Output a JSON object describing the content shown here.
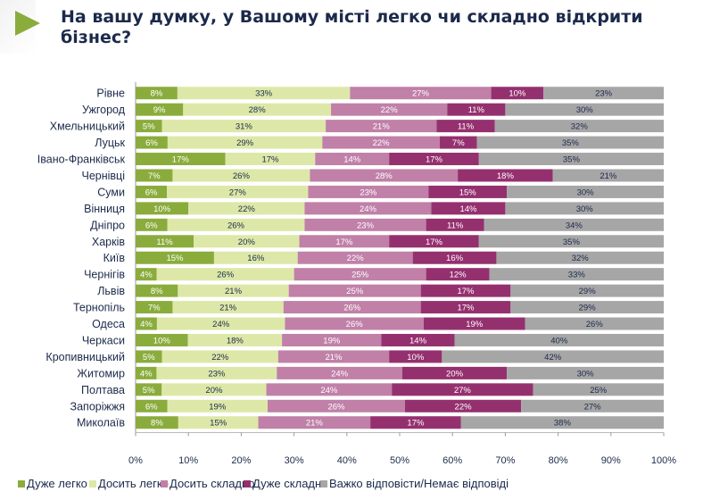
{
  "title": "На вашу думку, у Вашому місті легко чи складно відкрити бізнес?",
  "colors": [
    "#8aac3c",
    "#dde8a8",
    "#c080a8",
    "#95306f",
    "#a6a6a6"
  ],
  "chart_data": {
    "type": "bar",
    "orientation": "horizontal",
    "stacked": "percent",
    "title": "На вашу думку, у Вашому місті легко чи складно відкрити бізнес?",
    "xlim": [
      0,
      100
    ],
    "x_ticks": [
      "0%",
      "10%",
      "20%",
      "30%",
      "40%",
      "50%",
      "60%",
      "70%",
      "80%",
      "90%",
      "100%"
    ],
    "legend_position": "bottom",
    "categories": [
      "Рівне",
      "Ужгород",
      "Хмельницький",
      "Луцьк",
      "Івано-Франківськ",
      "Чернівці",
      "Суми",
      "Вінниця",
      "Дніпро",
      "Харків",
      "Київ",
      "Чернігів",
      "Львів",
      "Тернопіль",
      "Одеса",
      "Черкаси",
      "Кропивницький",
      "Житомир",
      "Полтава",
      "Запоріжжя",
      "Миколаїв"
    ],
    "series": [
      {
        "name": "Дуже легко",
        "values": [
          8,
          9,
          5,
          6,
          17,
          7,
          6,
          10,
          6,
          11,
          15,
          4,
          8,
          7,
          4,
          10,
          5,
          4,
          5,
          6,
          8
        ]
      },
      {
        "name": "Досить легко",
        "values": [
          33,
          28,
          31,
          29,
          17,
          26,
          27,
          22,
          26,
          20,
          16,
          26,
          21,
          21,
          24,
          18,
          22,
          23,
          20,
          19,
          15
        ]
      },
      {
        "name": "Досить складно",
        "values": [
          27,
          22,
          21,
          22,
          14,
          28,
          23,
          24,
          23,
          17,
          22,
          25,
          25,
          26,
          26,
          19,
          21,
          24,
          24,
          26,
          21
        ]
      },
      {
        "name": "Дуже складно",
        "values": [
          10,
          11,
          11,
          7,
          17,
          18,
          15,
          14,
          11,
          17,
          16,
          12,
          17,
          17,
          19,
          14,
          10,
          20,
          27,
          22,
          17
        ]
      },
      {
        "name": "Важко відповісти/Немає відповіді",
        "values": [
          23,
          30,
          32,
          35,
          35,
          21,
          30,
          30,
          34,
          35,
          32,
          33,
          29,
          29,
          26,
          40,
          42,
          30,
          25,
          27,
          38
        ]
      }
    ]
  }
}
